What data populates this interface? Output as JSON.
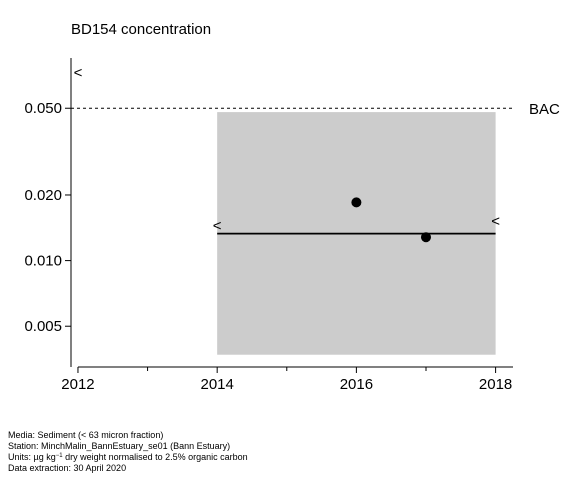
{
  "chart_data": {
    "type": "scatter",
    "title": "BD154 concentration",
    "xlabel": "",
    "ylabel": "",
    "y_scale": "log",
    "xlim": [
      2011.9,
      2018.25
    ],
    "ylim": [
      0.00325,
      0.085
    ],
    "x_ticks_major": [
      2012,
      2014,
      2016,
      2018
    ],
    "x_tick_labels": [
      "2012",
      "2014",
      "2016",
      "2018"
    ],
    "x_ticks_minor": [
      2013,
      2015,
      2017
    ],
    "y_ticks": [
      0.005,
      0.01,
      0.02,
      0.05
    ],
    "y_tick_labels": [
      "0.005",
      "0.010",
      "0.020",
      "0.050"
    ],
    "grid": false,
    "points": [
      {
        "x": 2016,
        "y": 0.0185
      },
      {
        "x": 2017,
        "y": 0.0128
      }
    ],
    "less_than_markers": [
      {
        "x": 2012,
        "y": 0.073,
        "label": "<"
      },
      {
        "x": 2014,
        "y": 0.0145,
        "label": "<"
      },
      {
        "x": 2018,
        "y": 0.0152,
        "label": "<"
      }
    ],
    "shaded_region": {
      "x0": 2014,
      "x1": 2018,
      "y0": 0.0037,
      "y1": 0.048
    },
    "trend_line": {
      "x0": 2014,
      "x1": 2018,
      "y": 0.0133
    },
    "reference_lines": [
      {
        "label": "BAC",
        "y": 0.05,
        "style": "dashed"
      }
    ]
  },
  "footer": {
    "media": "Media: Sediment (< 63 micron fraction)",
    "station": "Station: MinchMalin_BannEstuary_se01 (Bann Estuary)",
    "units_prefix": "Units: ",
    "units_mu": "µ",
    "units_g": "g kg",
    "units_sup": "−1",
    "units_suffix": " dry weight normalised to 2.5% organic carbon",
    "extraction": "Data extraction: 30 April 2020"
  }
}
